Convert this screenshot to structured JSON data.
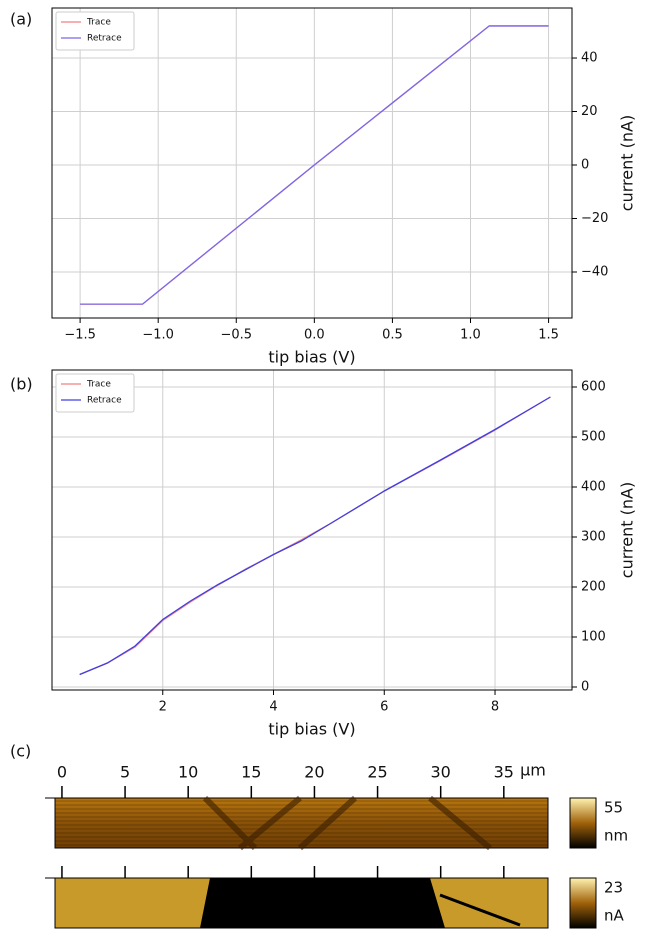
{
  "panels": [
    "(a)",
    "(b)",
    "(c)"
  ],
  "chart_data": [
    {
      "type": "line",
      "xlabel": "tip bias (V)",
      "ylabel": "current (nA)",
      "grid": true,
      "legend": "upper left",
      "x": [
        -1.5,
        -1.1,
        0,
        1.12,
        1.5
      ],
      "series": [
        {
          "name": "Trace",
          "color": "#f08080",
          "values": [
            -52,
            -52,
            0,
            52,
            52
          ]
        },
        {
          "name": "Retrace",
          "color": "#7b68ee",
          "values": [
            -52,
            -52,
            0,
            52,
            52
          ]
        }
      ],
      "xlim": [
        -1.68,
        1.65
      ],
      "ylim": [
        -57.2,
        58.7
      ],
      "xticks": [
        {
          "value": -1.5,
          "label": "−1.5"
        },
        {
          "value": -1.0,
          "label": "−1.0"
        },
        {
          "value": -0.5,
          "label": "−0.5"
        },
        {
          "value": 0,
          "label": "0.0"
        },
        0.5,
        {
          "value": 1.0,
          "label": "1.0"
        },
        1.5
      ],
      "yticks": [
        {
          "value": -40,
          "label": "−40"
        },
        {
          "value": -20,
          "label": "−20"
        },
        0,
        20,
        40
      ]
    },
    {
      "type": "line",
      "xlabel": "tip bias (V)",
      "ylabel": "current (nA)",
      "grid": true,
      "legend": "upper left",
      "x": [
        0.5,
        1,
        1.5,
        2,
        2.5,
        3,
        3.5,
        4,
        4.5,
        5,
        6,
        7,
        8,
        9
      ],
      "series": [
        {
          "name": "Trace",
          "color": "#f08080",
          "values": [
            25,
            48,
            80,
            133,
            170,
            204,
            236,
            265,
            294,
            325,
            392,
            452,
            514,
            580
          ]
        },
        {
          "name": "Retrace",
          "color": "#4040e0",
          "values": [
            25,
            48,
            82,
            135,
            172,
            205,
            235,
            265,
            292,
            325,
            392,
            453,
            515,
            580
          ]
        }
      ],
      "xlim": [
        0,
        9.39
      ],
      "ylim": [
        -6,
        634
      ],
      "xticks": [
        2,
        4,
        6,
        8
      ],
      "yticks": [
        0,
        100,
        200,
        300,
        400,
        500,
        600
      ]
    }
  ],
  "maps": {
    "unit": "µm",
    "xlim": [
      -0.55,
      38.5
    ],
    "ticks": [
      0,
      5,
      10,
      15,
      20,
      25,
      30,
      35
    ],
    "colorbars": [
      {
        "max": "55",
        "unit": "nm"
      },
      {
        "max": "23",
        "unit": "nA"
      }
    ]
  }
}
